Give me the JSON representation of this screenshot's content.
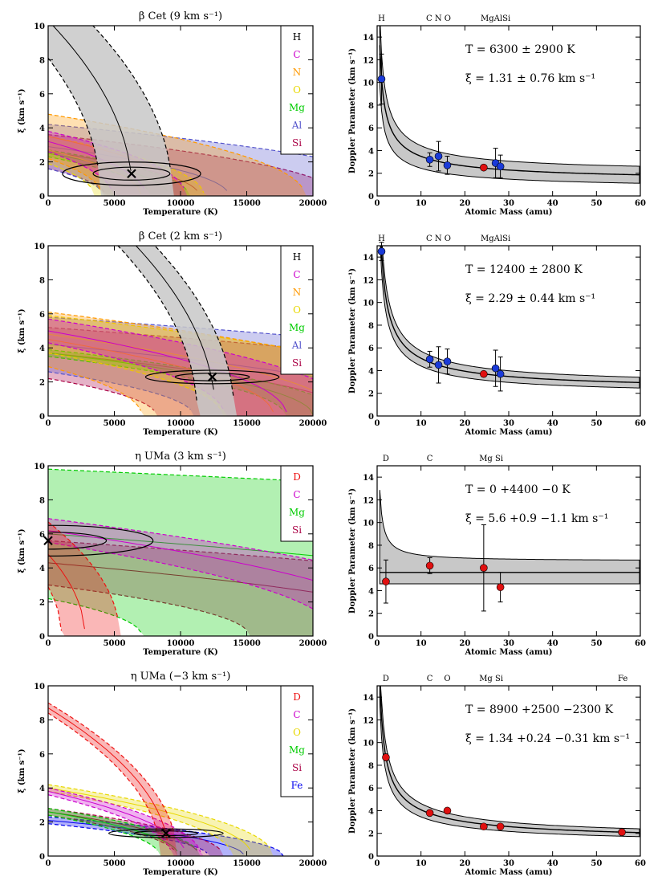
{
  "chart_data": [
    {
      "type": "contour",
      "title": "β Cet (9 km s⁻¹)",
      "xlabel": "Temperature (K)",
      "ylabel": "ξ (km s⁻¹)",
      "xlim": [
        0,
        20000
      ],
      "ylim": [
        0,
        10
      ],
      "xticks": [
        0,
        5000,
        10000,
        15000,
        20000
      ],
      "yticks": [
        0,
        2,
        4,
        6,
        8,
        10
      ],
      "legend": [
        {
          "label": "H",
          "color": "#000000"
        },
        {
          "label": "C",
          "color": "#cc00cc"
        },
        {
          "label": "N",
          "color": "#ff9900"
        },
        {
          "label": "O",
          "color": "#e8d800"
        },
        {
          "label": "Mg",
          "color": "#00cc00"
        },
        {
          "label": "Al",
          "color": "#5555cc"
        },
        {
          "label": "Si",
          "color": "#aa0044"
        }
      ],
      "best_fit": {
        "T": 6300,
        "xi": 1.31
      }
    },
    {
      "type": "scatter",
      "title_lines": [
        "T = 6300 ± 2900 K",
        "ξ = 1.31 ± 0.76 km s⁻¹"
      ],
      "xlabel": "Atomic Mass (amu)",
      "ylabel": "Doppler Parameter (km s⁻¹)",
      "xlim": [
        0,
        60
      ],
      "ylim": [
        0,
        15
      ],
      "xticks": [
        0,
        10,
        20,
        30,
        40,
        50,
        60
      ],
      "yticks": [
        0,
        2,
        4,
        6,
        8,
        10,
        12,
        14
      ],
      "top_labels": [
        {
          "label": "H",
          "mass": 1
        },
        {
          "label": "C N O",
          "mass": 14
        },
        {
          "label": "MgAlSi",
          "mass": 27
        }
      ],
      "points": [
        {
          "element": "H",
          "mass": 1,
          "b": 10.3,
          "err": 2.2,
          "color": "#1a3ad8"
        },
        {
          "element": "C",
          "mass": 12,
          "b": 3.2,
          "err": 0.6,
          "color": "#1a3ad8"
        },
        {
          "element": "N",
          "mass": 14,
          "b": 3.5,
          "err": 1.3,
          "color": "#1a3ad8"
        },
        {
          "element": "O",
          "mass": 16,
          "b": 2.7,
          "err": 0.8,
          "color": "#1a3ad8"
        },
        {
          "element": "Mg",
          "mass": 24.3,
          "b": 2.5,
          "err": 0.2,
          "color": "#e01010"
        },
        {
          "element": "Al",
          "mass": 27,
          "b": 2.9,
          "err": 1.3,
          "color": "#1a3ad8"
        },
        {
          "element": "Si",
          "mass": 28.1,
          "b": 2.6,
          "err": 1.0,
          "color": "#1a3ad8"
        }
      ],
      "fit": {
        "T": 6300,
        "xi": 1.31,
        "T_err": 2900,
        "xi_err": 0.76
      }
    },
    {
      "type": "contour",
      "title": "β Cet (2 km s⁻¹)",
      "xlabel": "Temperature (K)",
      "ylabel": "ξ (km s⁻¹)",
      "xlim": [
        0,
        20000
      ],
      "ylim": [
        0,
        10
      ],
      "xticks": [
        0,
        5000,
        10000,
        15000,
        20000
      ],
      "yticks": [
        0,
        2,
        4,
        6,
        8,
        10
      ],
      "legend": [
        {
          "label": "H",
          "color": "#000000"
        },
        {
          "label": "C",
          "color": "#cc00cc"
        },
        {
          "label": "N",
          "color": "#ff9900"
        },
        {
          "label": "O",
          "color": "#e8d800"
        },
        {
          "label": "Mg",
          "color": "#00cc00"
        },
        {
          "label": "Al",
          "color": "#5555cc"
        },
        {
          "label": "Si",
          "color": "#aa0044"
        }
      ],
      "best_fit": {
        "T": 12400,
        "xi": 2.29
      }
    },
    {
      "type": "scatter",
      "title_lines": [
        "T = 12400 ± 2800 K",
        "ξ = 2.29 ± 0.44 km s⁻¹"
      ],
      "xlabel": "Atomic Mass (amu)",
      "ylabel": "Doppler Parameter (km s⁻¹)",
      "xlim": [
        0,
        60
      ],
      "ylim": [
        0,
        15
      ],
      "xticks": [
        0,
        10,
        20,
        30,
        40,
        50,
        60
      ],
      "yticks": [
        0,
        2,
        4,
        6,
        8,
        10,
        12,
        14
      ],
      "top_labels": [
        {
          "label": "H",
          "mass": 1
        },
        {
          "label": "C N O",
          "mass": 14
        },
        {
          "label": "MgAlSi",
          "mass": 27
        }
      ],
      "points": [
        {
          "element": "H",
          "mass": 1,
          "b": 14.5,
          "err": 0.8,
          "color": "#1a3ad8"
        },
        {
          "element": "C",
          "mass": 12,
          "b": 5.0,
          "err": 0.7,
          "color": "#1a3ad8"
        },
        {
          "element": "N",
          "mass": 14,
          "b": 4.5,
          "err": 1.6,
          "color": "#1a3ad8"
        },
        {
          "element": "O",
          "mass": 16,
          "b": 4.8,
          "err": 1.1,
          "color": "#1a3ad8"
        },
        {
          "element": "Mg",
          "mass": 24.3,
          "b": 3.7,
          "err": 0.2,
          "color": "#e01010"
        },
        {
          "element": "Al",
          "mass": 27,
          "b": 4.2,
          "err": 1.6,
          "color": "#1a3ad8"
        },
        {
          "element": "Si",
          "mass": 28.1,
          "b": 3.7,
          "err": 1.5,
          "color": "#1a3ad8"
        }
      ],
      "fit": {
        "T": 12400,
        "xi": 2.29,
        "T_err": 2800,
        "xi_err": 0.44
      }
    },
    {
      "type": "contour",
      "title": "η UMa (3 km s⁻¹)",
      "xlabel": "Temperature (K)",
      "ylabel": "ξ (km s⁻¹)",
      "xlim": [
        0,
        20000
      ],
      "ylim": [
        0,
        10
      ],
      "xticks": [
        0,
        5000,
        10000,
        15000,
        20000
      ],
      "yticks": [
        0,
        2,
        4,
        6,
        8,
        10
      ],
      "legend": [
        {
          "label": "D",
          "color": "#ee1111"
        },
        {
          "label": "C",
          "color": "#cc00cc"
        },
        {
          "label": "Mg",
          "color": "#00cc00"
        },
        {
          "label": "Si",
          "color": "#aa0044"
        }
      ],
      "best_fit": {
        "T": 0,
        "xi": 5.6
      }
    },
    {
      "type": "scatter",
      "title_lines": [
        "T = 0 +4400 −0 K",
        "ξ = 5.6 +0.9 −1.1 km s⁻¹"
      ],
      "xlabel": "Atomic Mass (amu)",
      "ylabel": "Doppler Parameter (km s⁻¹)",
      "xlim": [
        0,
        60
      ],
      "ylim": [
        0,
        15
      ],
      "xticks": [
        0,
        10,
        20,
        30,
        40,
        50,
        60
      ],
      "yticks": [
        0,
        2,
        4,
        6,
        8,
        10,
        12,
        14
      ],
      "top_labels": [
        {
          "label": "D",
          "mass": 2
        },
        {
          "label": "C",
          "mass": 12
        },
        {
          "label": "Mg Si",
          "mass": 26
        }
      ],
      "points": [
        {
          "element": "D",
          "mass": 2,
          "b": 4.8,
          "err": 1.9,
          "color": "#e01010"
        },
        {
          "element": "C",
          "mass": 12,
          "b": 6.2,
          "err": 0.7,
          "color": "#e01010"
        },
        {
          "element": "Mg",
          "mass": 24.3,
          "b": 6.0,
          "err": 3.8,
          "color": "#e01010"
        },
        {
          "element": "Si",
          "mass": 28.1,
          "b": 4.3,
          "err": 1.3,
          "color": "#e01010"
        }
      ],
      "fit": {
        "T": 0,
        "xi": 5.6,
        "T_err": 4400,
        "xi_err": 1.0
      }
    },
    {
      "type": "contour",
      "title": "η UMa (−3 km s⁻¹)",
      "xlabel": "Temperature (K)",
      "ylabel": "ξ (km s⁻¹)",
      "xlim": [
        0,
        20000
      ],
      "ylim": [
        0,
        10
      ],
      "xticks": [
        0,
        5000,
        10000,
        15000,
        20000
      ],
      "yticks": [
        0,
        2,
        4,
        6,
        8,
        10
      ],
      "legend": [
        {
          "label": "D",
          "color": "#ee1111"
        },
        {
          "label": "C",
          "color": "#cc00cc"
        },
        {
          "label": "O",
          "color": "#e8d800"
        },
        {
          "label": "Mg",
          "color": "#00cc00"
        },
        {
          "label": "Si",
          "color": "#aa0044"
        },
        {
          "label": "Fe",
          "color": "#0000ee"
        }
      ],
      "best_fit": {
        "T": 8900,
        "xi": 1.34
      }
    },
    {
      "type": "scatter",
      "title_lines": [
        "T = 8900 +2500 −2300 K",
        "ξ = 1.34 +0.24 −0.31 km s⁻¹"
      ],
      "xlabel": "Atomic Mass (amu)",
      "ylabel": "Doppler Parameter (km s⁻¹)",
      "xlim": [
        0,
        60
      ],
      "ylim": [
        0,
        15
      ],
      "xticks": [
        0,
        10,
        20,
        30,
        40,
        50,
        60
      ],
      "yticks": [
        0,
        2,
        4,
        6,
        8,
        10,
        12,
        14
      ],
      "top_labels": [
        {
          "label": "D",
          "mass": 2
        },
        {
          "label": "C",
          "mass": 12
        },
        {
          "label": "O",
          "mass": 16
        },
        {
          "label": "Mg Si",
          "mass": 26
        },
        {
          "label": "Fe",
          "mass": 56
        }
      ],
      "points": [
        {
          "element": "D",
          "mass": 2,
          "b": 8.7,
          "err": 0.3,
          "color": "#e01010"
        },
        {
          "element": "C",
          "mass": 12,
          "b": 3.8,
          "err": 0.2,
          "color": "#e01010"
        },
        {
          "element": "O",
          "mass": 16,
          "b": 4.0,
          "err": 0.2,
          "color": "#e01010"
        },
        {
          "element": "Mg",
          "mass": 24.3,
          "b": 2.6,
          "err": 0.2,
          "color": "#e01010"
        },
        {
          "element": "Si",
          "mass": 28.1,
          "b": 2.6,
          "err": 0.2,
          "color": "#e01010"
        },
        {
          "element": "Fe",
          "mass": 55.8,
          "b": 2.1,
          "err": 0.2,
          "color": "#e01010"
        }
      ],
      "fit": {
        "T": 8900,
        "xi": 1.34,
        "T_err": 2400,
        "xi_err": 0.28
      }
    }
  ]
}
